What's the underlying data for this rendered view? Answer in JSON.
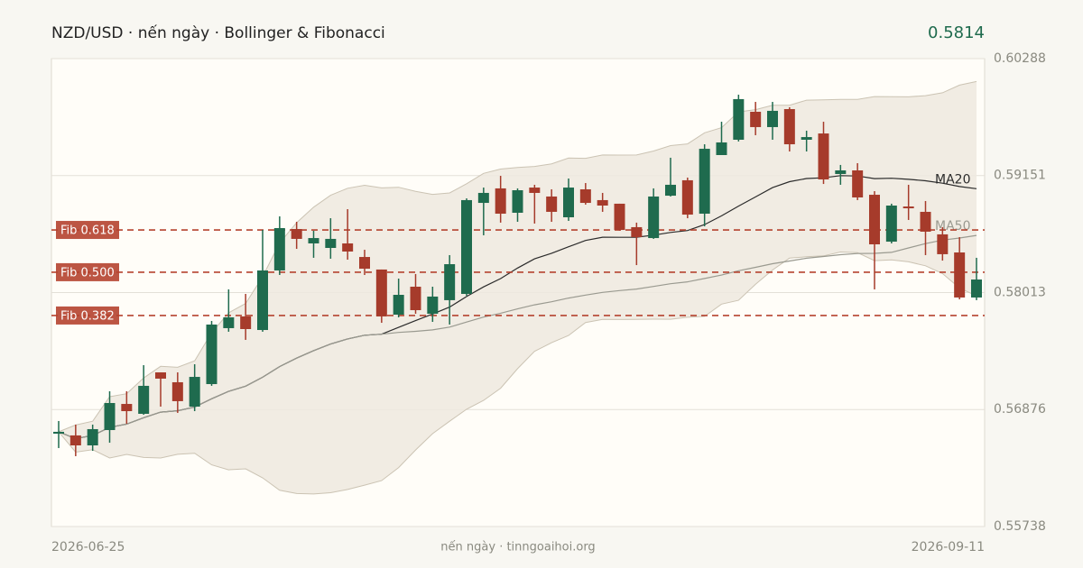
{
  "chart_data": {
    "type": "candlestick",
    "title": "NZD/USD · nến ngày · Bollinger & Fibonacci",
    "last_price": 0.5814,
    "footer": "nến ngày · tinngoaihoi.org",
    "categories": [
      "2026-06-25",
      null,
      null,
      null,
      null,
      null,
      null,
      null,
      null,
      null,
      null,
      null,
      null,
      null,
      null,
      null,
      null,
      null,
      null,
      null,
      null,
      null,
      null,
      null,
      null,
      null,
      null,
      null,
      null,
      null,
      null,
      null,
      null,
      null,
      null,
      null,
      null,
      null,
      null,
      null,
      null,
      null,
      null,
      null,
      null,
      null,
      null,
      null,
      null,
      null,
      null,
      null,
      null,
      null,
      "2026-09-11"
    ],
    "open": [
      0.56641,
      0.56624,
      0.56527,
      0.56676,
      0.5693,
      0.56834,
      0.57237,
      0.57141,
      0.56904,
      0.57123,
      0.57667,
      0.57781,
      0.57649,
      0.58228,
      0.58631,
      0.58491,
      0.58447,
      0.58491,
      0.58359,
      0.58237,
      0.57798,
      0.5807,
      0.57807,
      0.57939,
      0.58,
      0.58885,
      0.59026,
      0.58789,
      0.59034,
      0.58947,
      0.58745,
      0.59017,
      0.58912,
      0.58877,
      0.58649,
      0.58543,
      0.58955,
      0.59105,
      0.5878,
      0.5935,
      0.59499,
      0.59771,
      0.59622,
      0.59797,
      0.59499,
      0.5956,
      0.59166,
      0.59201,
      0.58964,
      0.58508,
      0.5885,
      0.58798,
      0.58579,
      0.58403,
      0.57965
    ],
    "high": [
      0.56764,
      0.56729,
      0.56729,
      0.57053,
      0.57053,
      0.57307,
      0.57237,
      0.57237,
      0.57316,
      0.57737,
      0.58044,
      0.58,
      0.58622,
      0.58754,
      0.58701,
      0.58614,
      0.58736,
      0.58824,
      0.58429,
      0.58237,
      0.58149,
      0.58193,
      0.5807,
      0.58377,
      0.58929,
      0.59034,
      0.59148,
      0.59026,
      0.59061,
      0.59017,
      0.59122,
      0.59078,
      0.58982,
      0.58877,
      0.58693,
      0.59026,
      0.59324,
      0.59131,
      0.59455,
      0.59674,
      0.59937,
      0.59867,
      0.59867,
      0.59815,
      0.59587,
      0.59674,
      0.59254,
      0.59271,
      0.58999,
      0.58877,
      0.59061,
      0.58903,
      0.58649,
      0.58552,
      0.58351
    ],
    "low": [
      0.56501,
      0.56422,
      0.56474,
      0.56553,
      0.56737,
      0.56825,
      0.56904,
      0.56843,
      0.5686,
      0.57106,
      0.57632,
      0.57553,
      0.57632,
      0.58184,
      0.58438,
      0.58351,
      0.58342,
      0.58333,
      0.58184,
      0.57719,
      0.57772,
      0.57807,
      0.57728,
      0.57702,
      0.57982,
      0.5857,
      0.58693,
      0.58701,
      0.58684,
      0.58701,
      0.5871,
      0.58868,
      0.58798,
      0.58614,
      0.5828,
      0.58535,
      0.58947,
      0.58736,
      0.58657,
      0.5935,
      0.59482,
      0.59543,
      0.59499,
      0.59385,
      0.59385,
      0.59069,
      0.59061,
      0.58912,
      0.58044,
      0.58491,
      0.58719,
      0.58377,
      0.58324,
      0.57947,
      0.57939
    ],
    "close": [
      0.56659,
      0.56527,
      0.56685,
      0.56939,
      0.5686,
      0.57106,
      0.57176,
      0.56957,
      0.57193,
      0.57702,
      0.57772,
      0.57658,
      0.58228,
      0.5864,
      0.58535,
      0.58543,
      0.58535,
      0.58412,
      0.58245,
      0.57781,
      0.57991,
      0.57842,
      0.57974,
      0.58289,
      0.58912,
      0.58982,
      0.5878,
      0.59008,
      0.58982,
      0.58798,
      0.59034,
      0.58885,
      0.58859,
      0.58622,
      0.58552,
      0.58947,
      0.59061,
      0.58771,
      0.59411,
      0.59473,
      0.59894,
      0.59622,
      0.5978,
      0.59455,
      0.59525,
      0.59113,
      0.59201,
      0.58938,
      0.58482,
      0.58859,
      0.58833,
      0.58605,
      0.58386,
      0.57965,
      0.5814
    ],
    "up_color": "#1f6b4e",
    "down_color": "#a63b2b",
    "ylim": [
      0.55738,
      0.60288
    ],
    "yticks": [
      0.55738,
      0.56876,
      0.58013,
      0.59151,
      0.60288
    ],
    "grid": true,
    "fib_levels": [
      {
        "label": "Fib 0.618",
        "value": 0.58622
      },
      {
        "label": "Fib 0.500",
        "value": 0.58211
      },
      {
        "label": "Fib 0.382",
        "value": 0.5779
      }
    ],
    "fib_color": "#b5432f",
    "moving_averages": [
      {
        "name": "MA20",
        "period": 20,
        "color": "#2b2b2b"
      },
      {
        "name": "MA50",
        "period": 50,
        "color": "#9a9a90"
      }
    ],
    "bollinger_period": 20,
    "bollinger_width": 2
  }
}
